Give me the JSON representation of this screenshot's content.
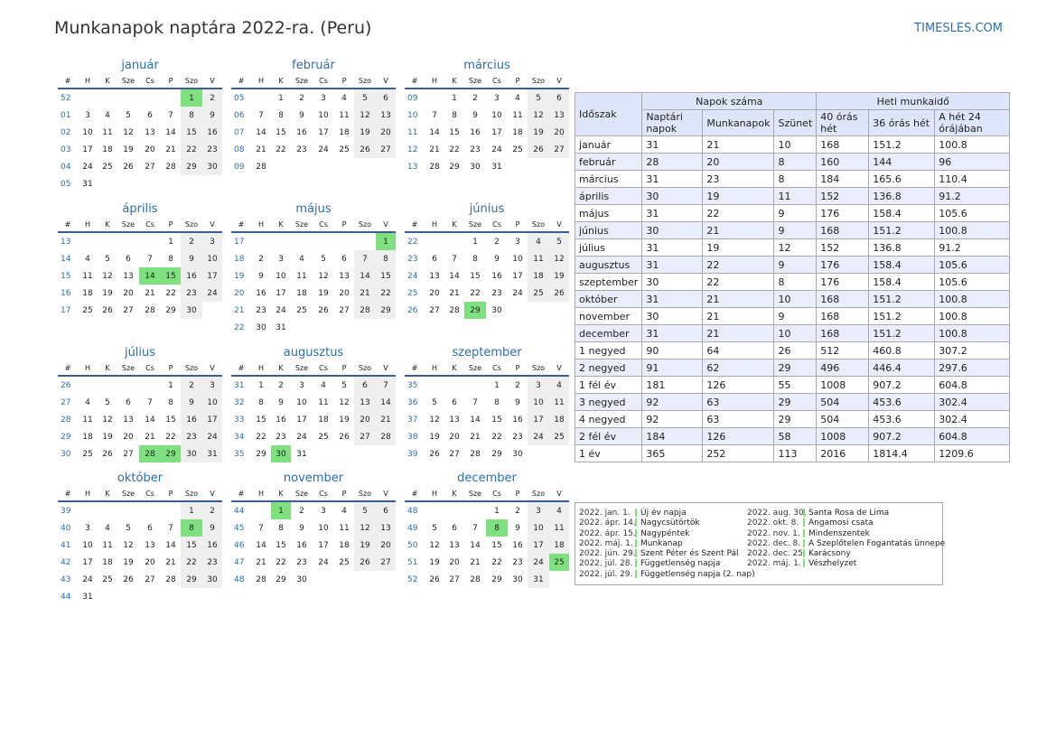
{
  "title": "Munkanapok naptára 2022-ra. (Peru)",
  "site": "TIMESLES.COM",
  "colors": {
    "accent": "#2a6fb0",
    "holiday": "#7fe07f",
    "weekend": "#efefef"
  },
  "weekday_headers": [
    "#",
    "H",
    "K",
    "Sze",
    "Cs",
    "P",
    "Szo",
    "V"
  ],
  "months": [
    {
      "name": "január",
      "start": 5,
      "days": 31,
      "week": 52,
      "holidays": [
        1
      ]
    },
    {
      "name": "február",
      "start": 1,
      "days": 28,
      "week": 5,
      "holidays": []
    },
    {
      "name": "március",
      "start": 1,
      "days": 31,
      "week": 9,
      "holidays": []
    },
    {
      "name": "április",
      "start": 4,
      "days": 30,
      "week": 13,
      "holidays": [
        14,
        15
      ]
    },
    {
      "name": "május",
      "start": 6,
      "days": 31,
      "week": 17,
      "holidays": [
        1
      ]
    },
    {
      "name": "június",
      "start": 2,
      "days": 30,
      "week": 22,
      "holidays": [
        29
      ]
    },
    {
      "name": "július",
      "start": 4,
      "days": 31,
      "week": 26,
      "holidays": [
        28,
        29
      ]
    },
    {
      "name": "augusztus",
      "start": 0,
      "days": 31,
      "week": 31,
      "holidays": [
        30
      ]
    },
    {
      "name": "szeptember",
      "start": 3,
      "days": 30,
      "week": 35,
      "holidays": []
    },
    {
      "name": "október",
      "start": 5,
      "days": 31,
      "week": 39,
      "holidays": [
        8
      ]
    },
    {
      "name": "november",
      "start": 1,
      "days": 30,
      "week": 44,
      "holidays": [
        1
      ]
    },
    {
      "name": "december",
      "start": 3,
      "days": 31,
      "week": 48,
      "holidays": [
        8,
        25
      ]
    }
  ],
  "stats": {
    "headers": {
      "period": "Időszak",
      "count_group": "Napok száma",
      "hours_group": "Heti munkaidő",
      "calendar_days": "Naptári napok",
      "workdays": "Munkanapok",
      "holidays": "Szünet",
      "h40": "40 órás hét",
      "h36": "36 órás hét",
      "h24": "A hét 24 órájában"
    },
    "rows": [
      [
        "január",
        "31",
        "21",
        "10",
        "168",
        "151.2",
        "100.8"
      ],
      [
        "február",
        "28",
        "20",
        "8",
        "160",
        "144",
        "96"
      ],
      [
        "március",
        "31",
        "23",
        "8",
        "184",
        "165.6",
        "110.4"
      ],
      [
        "április",
        "30",
        "19",
        "11",
        "152",
        "136.8",
        "91.2"
      ],
      [
        "május",
        "31",
        "22",
        "9",
        "176",
        "158.4",
        "105.6"
      ],
      [
        "június",
        "30",
        "21",
        "9",
        "168",
        "151.2",
        "100.8"
      ],
      [
        "július",
        "31",
        "19",
        "12",
        "152",
        "136.8",
        "91.2"
      ],
      [
        "augusztus",
        "31",
        "22",
        "9",
        "176",
        "158.4",
        "105.6"
      ],
      [
        "szeptember",
        "30",
        "22",
        "8",
        "176",
        "158.4",
        "105.6"
      ],
      [
        "október",
        "31",
        "21",
        "10",
        "168",
        "151.2",
        "100.8"
      ],
      [
        "november",
        "30",
        "21",
        "9",
        "168",
        "151.2",
        "100.8"
      ],
      [
        "december",
        "31",
        "21",
        "10",
        "168",
        "151.2",
        "100.8"
      ],
      [
        "1 negyed",
        "90",
        "64",
        "26",
        "512",
        "460.8",
        "307.2"
      ],
      [
        "2 negyed",
        "91",
        "62",
        "29",
        "496",
        "446.4",
        "297.6"
      ],
      [
        "1 fél év",
        "181",
        "126",
        "55",
        "1008",
        "907.2",
        "604.8"
      ],
      [
        "3 negyed",
        "92",
        "63",
        "29",
        "504",
        "453.6",
        "302.4"
      ],
      [
        "4 negyed",
        "92",
        "63",
        "29",
        "504",
        "453.6",
        "302.4"
      ],
      [
        "2 fél év",
        "184",
        "126",
        "58",
        "1008",
        "907.2",
        "604.8"
      ],
      [
        "1 év",
        "365",
        "252",
        "113",
        "2016",
        "1814.4",
        "1209.6"
      ]
    ]
  },
  "holidays_list": {
    "col1": [
      [
        "2022. jan. 1.",
        "Új év napja"
      ],
      [
        "2022. ápr. 14.",
        "Nagycsütörtök"
      ],
      [
        "2022. ápr. 15.",
        "Nagypéntek"
      ],
      [
        "2022. máj. 1.",
        "Munkanap"
      ],
      [
        "2022. jún. 29.",
        "Szent Péter és Szent Pál"
      ],
      [
        "2022. júl. 28.",
        "Függetlenség napja"
      ],
      [
        "2022. júl. 29.",
        "Függetlenség napja (2. nap)"
      ]
    ],
    "col2": [
      [
        "2022. aug. 30.",
        "Santa Rosa de Lima"
      ],
      [
        "2022. okt. 8.",
        "Angamosi csata"
      ],
      [
        "2022. nov. 1.",
        "Mindenszentek"
      ],
      [
        "2022. dec. 8.",
        "A Szeplőtelen Fogantatás ünnepe"
      ],
      [
        "2022. dec. 25.",
        "Karácsony"
      ],
      [
        "2022. máj. 1.",
        "Vészhelyzet"
      ]
    ]
  }
}
